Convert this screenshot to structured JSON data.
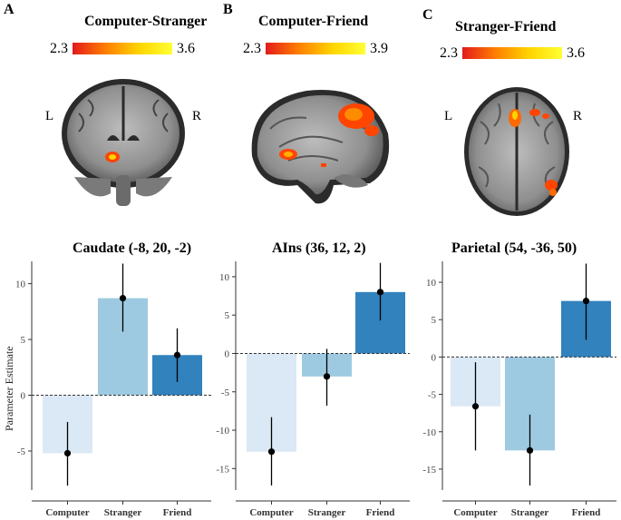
{
  "panels": [
    {
      "letter": "A",
      "contrast": "Computer-Stranger",
      "scale_min": "2.3",
      "scale_max": "3.6",
      "left_label": "L",
      "right_label": "R",
      "view": "coronal",
      "roi": "Caudate (-8, 20, -2)"
    },
    {
      "letter": "B",
      "contrast": "Computer-Friend",
      "scale_min": "2.3",
      "scale_max": "3.9",
      "view": "sagittal",
      "roi": "AIns (36, 12, 2)"
    },
    {
      "letter": "C",
      "contrast": "Stranger-Friend",
      "scale_min": "2.3",
      "scale_max": "3.6",
      "left_label": "L",
      "right_label": "R",
      "view": "axial",
      "roi": "Parietal (54, -36, 50)"
    }
  ],
  "colors": {
    "computer": "#dbe8f5",
    "stranger": "#9ecae1",
    "friend": "#3182bd"
  },
  "y_axis_label": "Parameter Estimate",
  "chart_data": [
    {
      "type": "bar",
      "title": "Caudate (-8, 20, -2)",
      "categories": [
        "Computer",
        "Stranger",
        "Friend"
      ],
      "values": [
        -5.2,
        8.7,
        3.6
      ],
      "error_low": [
        -8.1,
        5.7,
        1.2
      ],
      "error_high": [
        -2.4,
        11.8,
        6.0
      ],
      "ylabel": "Parameter Estimate",
      "ylim": [
        -8.5,
        12
      ],
      "yticks": [
        -5,
        0,
        5,
        10
      ]
    },
    {
      "type": "bar",
      "title": "AIns (36, 12, 2)",
      "categories": [
        "Computer",
        "Stranger",
        "Friend"
      ],
      "values": [
        -12.8,
        -3.0,
        8.0
      ],
      "error_low": [
        -17.2,
        -6.8,
        4.3
      ],
      "error_high": [
        -8.3,
        0.6,
        11.8
      ],
      "ylabel": "",
      "ylim": [
        -17.8,
        12
      ],
      "yticks": [
        -15,
        -10,
        -5,
        0,
        5,
        10
      ]
    },
    {
      "type": "bar",
      "title": "Parietal (54, -36, 50)",
      "categories": [
        "Computer",
        "Stranger",
        "Friend"
      ],
      "values": [
        -6.6,
        -12.5,
        7.5
      ],
      "error_low": [
        -12.5,
        -17.2,
        2.3
      ],
      "error_high": [
        -0.7,
        -7.7,
        12.5
      ],
      "ylabel": "",
      "ylim": [
        -17.8,
        12.8
      ],
      "yticks": [
        -15,
        -10,
        -5,
        0,
        5,
        10
      ]
    }
  ]
}
